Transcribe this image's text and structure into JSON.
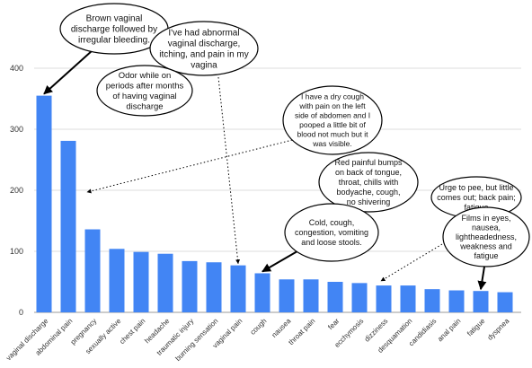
{
  "chart_data": {
    "type": "bar",
    "categories": [
      "vaginal discharge",
      "abdominal pain",
      "pregnancy",
      "sexually active",
      "chest pain",
      "headache",
      "traumatic injury",
      "burning sensation",
      "vaginal pain",
      "cough",
      "nausea",
      "throat pain",
      "fear",
      "ecchymosis",
      "dizziness",
      "desquamation",
      "candidiasis",
      "anal pain",
      "fatigue",
      "dyspnea"
    ],
    "values": [
      355,
      281,
      136,
      104,
      99,
      96,
      84,
      82,
      77,
      64,
      54,
      54,
      50,
      48,
      44,
      44,
      38,
      36,
      35,
      33
    ],
    "ylim": [
      0,
      400
    ],
    "yticks": [
      "0",
      "100",
      "200",
      "300",
      "400"
    ],
    "grid": true,
    "bar_color": "#4285f4",
    "annotations": [
      {
        "lines": [
          "Brown vaginal",
          "discharge followed by",
          "irregular bleeding."
        ],
        "style": "thick"
      },
      {
        "lines": [
          "I've had abnormal",
          "vaginal discharge,",
          "itching, and pain in my",
          "vagina"
        ],
        "style": "dotted"
      },
      {
        "lines": [
          "Odor while on",
          "periods after months",
          "of having vaginal",
          "discharge"
        ],
        "style": "thick"
      },
      {
        "lines": [
          "I have a dry cough",
          "with pain on the left",
          "side of abdomen and I",
          "pooped a little bit of",
          "blood not much but it",
          "was visible."
        ],
        "style": "dotted"
      },
      {
        "lines": [
          "Red painful bumps",
          "on back of tongue,",
          "throat, chills with",
          "bodyache,  cough,",
          "no shivering"
        ],
        "style": "none"
      },
      {
        "lines": [
          "Cold, cough,",
          "congestion, vomiting",
          "and loose stools."
        ],
        "style": "thick"
      },
      {
        "lines": [
          "Urge to pee, but little",
          "comes out; back pain;",
          "fatigue"
        ],
        "style": "dotted"
      },
      {
        "lines": [
          "Films in eyes,",
          "nausea,",
          "lightheadedness,",
          "weakness and",
          "fatigue"
        ],
        "style": "thick"
      }
    ]
  }
}
